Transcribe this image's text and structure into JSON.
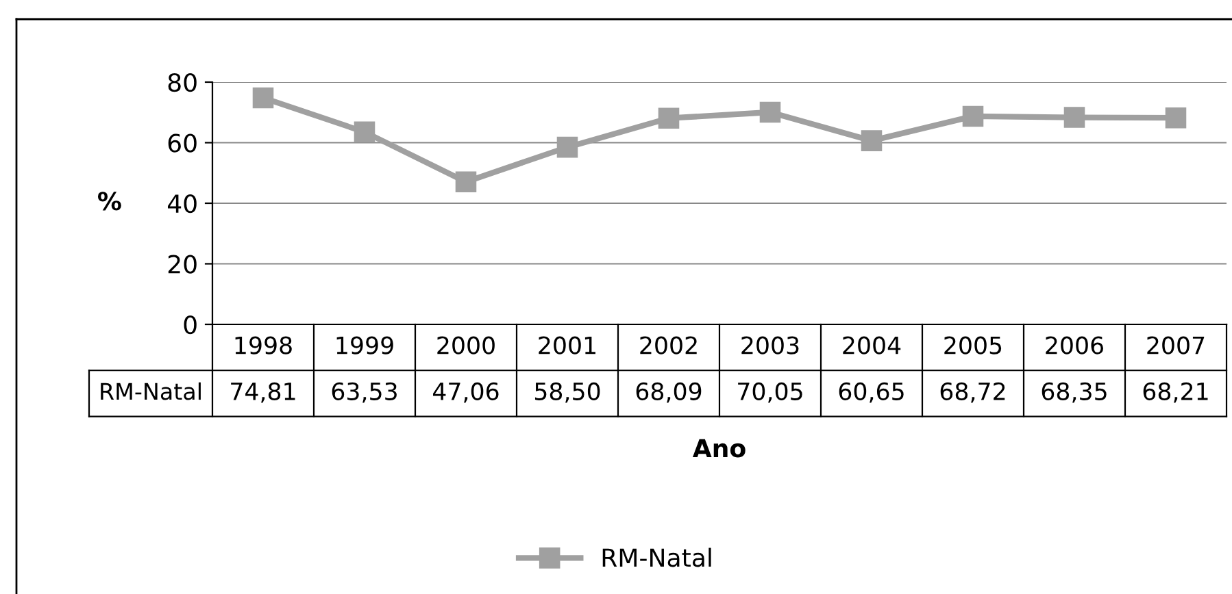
{
  "chart_data": {
    "type": "line",
    "ylabel": "%",
    "xlabel": "Ano",
    "categories": [
      "1998",
      "1999",
      "2000",
      "2001",
      "2002",
      "2003",
      "2004",
      "2005",
      "2006",
      "2007"
    ],
    "series": [
      {
        "name": "RM-Natal",
        "color": "#a0a0a0",
        "values": [
          74.81,
          63.53,
          47.06,
          58.5,
          68.09,
          70.05,
          60.65,
          68.72,
          68.35,
          68.21
        ],
        "value_labels": [
          "74,81",
          "63,53",
          "47,06",
          "58,50",
          "68,09",
          "70,05",
          "60,65",
          "68,72",
          "68,35",
          "68,21"
        ]
      }
    ],
    "ylim": [
      0,
      80
    ],
    "yticks": [
      0,
      20,
      40,
      60,
      80
    ],
    "grid": "y",
    "legend": "bottom",
    "marker": "square",
    "line_style": "solid",
    "data_labels": true
  }
}
